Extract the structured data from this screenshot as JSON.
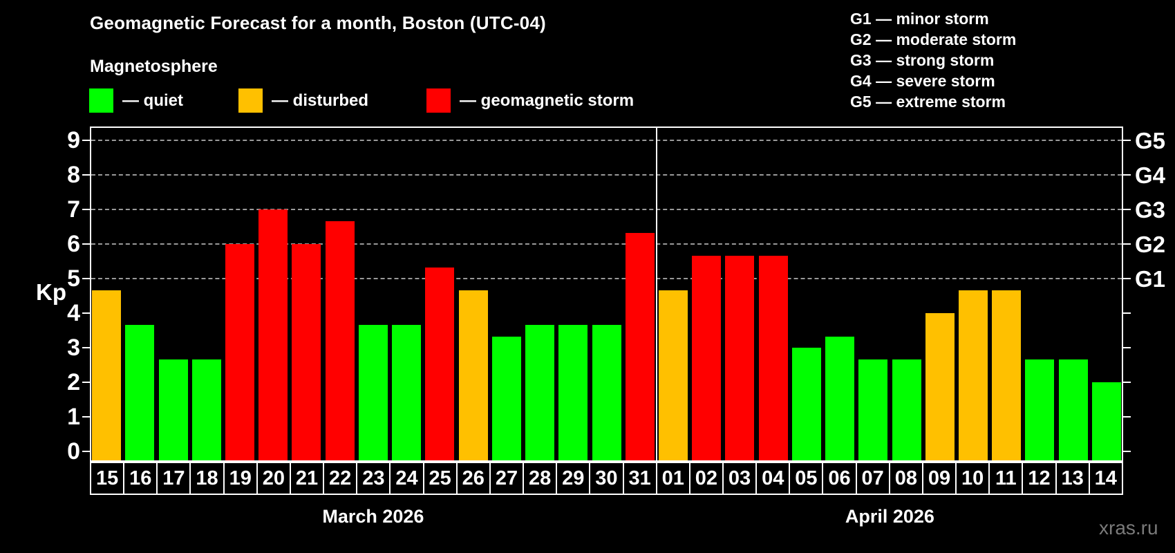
{
  "header": {
    "title": "Geomagnetic Forecast for a month, Boston (UTC-04)",
    "subtitle": "Magnetosphere"
  },
  "legend": {
    "items": [
      {
        "key": "quiet",
        "label": "— quiet",
        "color": "#00ff00"
      },
      {
        "key": "disturbed",
        "label": "— disturbed",
        "color": "#ffc000"
      },
      {
        "key": "storm",
        "label": "— geomagnetic storm",
        "color": "#ff0000"
      }
    ]
  },
  "storm_scale_legend": {
    "items": [
      "G1 — minor storm",
      "G2 — moderate storm",
      "G3 — strong storm",
      "G4 — severe storm",
      "G5 — extreme storm"
    ]
  },
  "watermark": "xras.ru",
  "chart_data": {
    "type": "bar",
    "title": "Geomagnetic Forecast for a month, Boston (UTC-04)",
    "ylabel": "Kp",
    "ylim": [
      -0.3,
      9.4
    ],
    "y_ticks": [
      0,
      1,
      2,
      3,
      4,
      5,
      6,
      7,
      8,
      9
    ],
    "gridlines_at": [
      5,
      6,
      7,
      8,
      9
    ],
    "grid": true,
    "right_axis_labels": [
      {
        "label": "G1",
        "kp": 5
      },
      {
        "label": "G2",
        "kp": 6
      },
      {
        "label": "G3",
        "kp": 7
      },
      {
        "label": "G4",
        "kp": 8
      },
      {
        "label": "G5",
        "kp": 9
      }
    ],
    "months": [
      {
        "label": "March 2026",
        "days": 17
      },
      {
        "label": "April 2026",
        "days": 14
      }
    ],
    "categories": [
      "15",
      "16",
      "17",
      "18",
      "19",
      "20",
      "21",
      "22",
      "23",
      "24",
      "25",
      "26",
      "27",
      "28",
      "29",
      "30",
      "31",
      "01",
      "02",
      "03",
      "04",
      "05",
      "06",
      "07",
      "08",
      "09",
      "10",
      "11",
      "12",
      "13",
      "14"
    ],
    "series": [
      {
        "name": "Kp forecast",
        "values": [
          4.67,
          3.67,
          2.67,
          2.67,
          6.0,
          7.0,
          6.0,
          6.67,
          3.67,
          3.67,
          5.33,
          4.67,
          3.33,
          3.67,
          3.67,
          3.67,
          6.33,
          4.67,
          5.67,
          5.67,
          5.67,
          3.0,
          3.33,
          2.67,
          2.67,
          4.0,
          4.67,
          4.67,
          2.67,
          2.67,
          2.0
        ]
      }
    ],
    "levels": [
      "disturbed",
      "quiet",
      "quiet",
      "quiet",
      "storm",
      "storm",
      "storm",
      "storm",
      "quiet",
      "quiet",
      "storm",
      "disturbed",
      "quiet",
      "quiet",
      "quiet",
      "quiet",
      "storm",
      "disturbed",
      "storm",
      "storm",
      "storm",
      "quiet",
      "quiet",
      "quiet",
      "quiet",
      "disturbed",
      "disturbed",
      "disturbed",
      "quiet",
      "quiet",
      "quiet"
    ],
    "colors": {
      "quiet": "#00ff00",
      "disturbed": "#ffc000",
      "storm": "#ff0000"
    }
  }
}
